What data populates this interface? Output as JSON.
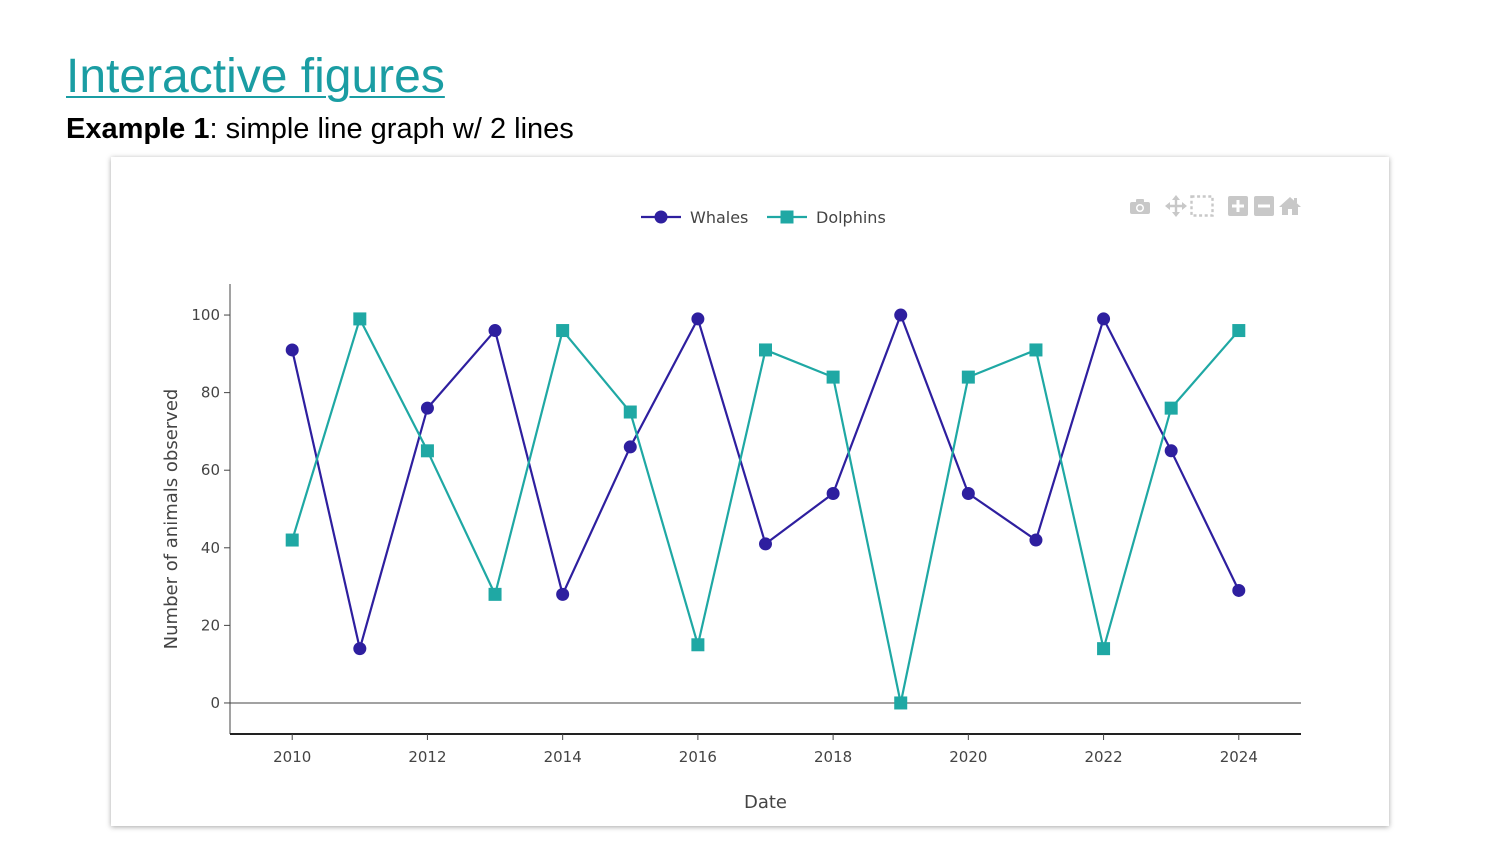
{
  "slide": {
    "title": "Interactive figures",
    "subtitle_bold": "Example 1",
    "subtitle_rest": ": simple line graph w/ 2 lines"
  },
  "modebar": [
    "camera-icon",
    "pan-icon",
    "box-select-icon",
    "zoom-in-icon",
    "zoom-out-icon",
    "reset-axes-home-icon"
  ],
  "chart_data": {
    "type": "line",
    "title": "",
    "xlabel": "Date",
    "ylabel": "Number of animals observed",
    "x": [
      2010,
      2011,
      2012,
      2013,
      2014,
      2015,
      2016,
      2017,
      2018,
      2019,
      2020,
      2021,
      2022,
      2023,
      2024
    ],
    "xlim": [
      2009.08,
      2024.92
    ],
    "ylim": [
      -8,
      108
    ],
    "xticks": [
      2010,
      2012,
      2014,
      2016,
      2018,
      2020,
      2022,
      2024
    ],
    "yticks": [
      0,
      20,
      40,
      60,
      80,
      100
    ],
    "grid": false,
    "legend_position": "top-center",
    "series": [
      {
        "name": "Whales",
        "color": "#2e1f9f",
        "marker": "circle",
        "values": [
          91,
          14,
          76,
          96,
          28,
          66,
          99,
          41,
          54,
          100,
          54,
          42,
          99,
          65,
          29
        ]
      },
      {
        "name": "Dolphins",
        "color": "#1fa8a4",
        "marker": "square",
        "values": [
          42,
          99,
          65,
          28,
          96,
          75,
          15,
          91,
          84,
          0,
          84,
          91,
          14,
          76,
          96
        ]
      }
    ]
  }
}
